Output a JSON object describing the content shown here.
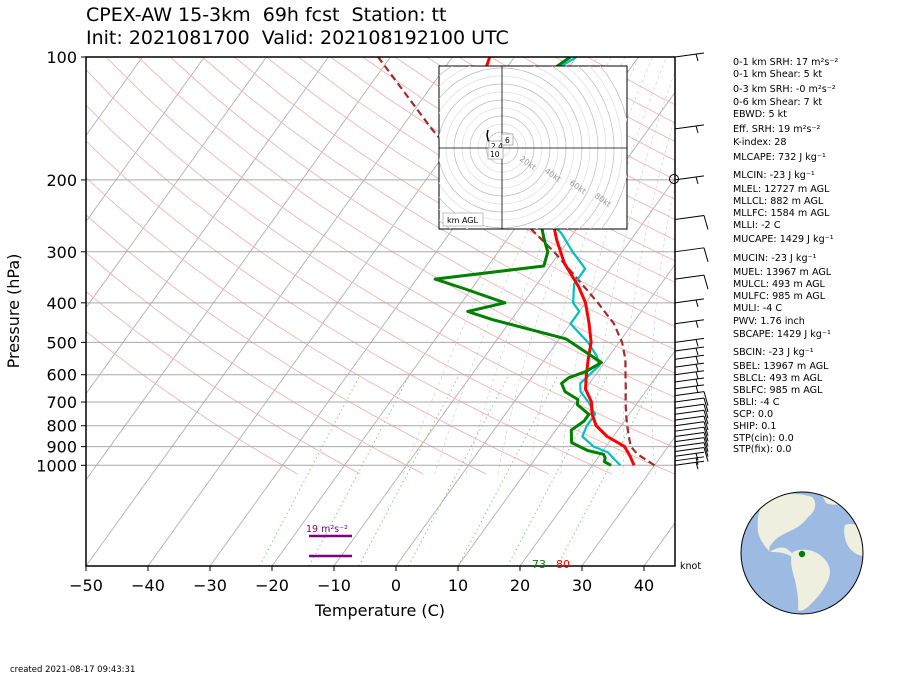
{
  "title": {
    "line1": "CPEX-AW 15-3km  69h fcst  Station: tt",
    "line2": "Init: 2021081700  Valid: 202108192100 UTC"
  },
  "created": "created 2021-08-17 09:43:31",
  "axes": {
    "xlabel": "Temperature (C)",
    "ylabel": "Pressure (hPa)",
    "xticks": [
      "−50",
      "−40",
      "−30",
      "−20",
      "−10",
      "0",
      "10",
      "20",
      "30",
      "40"
    ],
    "yticks": [
      "100",
      "200",
      "300",
      "400",
      "500",
      "600",
      "700",
      "800",
      "900",
      "1000"
    ]
  },
  "surface_labels": {
    "dewpoint": "73",
    "temperature": "80"
  },
  "srh_label": "19 m²s⁻²",
  "knot_label": "knot",
  "hodograph": {
    "rings": [
      "20kt",
      "40kt",
      "60kt",
      "80kt"
    ],
    "legend": "km AGL",
    "marks": [
      "2.4",
      "6",
      "10"
    ]
  },
  "indices": [
    "0-1 km SRH: 17 m²s⁻²",
    "0-1 km Shear: 5 kt",
    "0-3 km SRH: -0 m²s⁻²",
    "0-6 km Shear: 7 kt",
    "EBWD: 5 kt",
    "Eff. SRH: 19 m²s⁻²",
    "K-index: 28",
    "MLCAPE: 732 J kg⁻¹",
    "MLCIN: -23 J kg⁻¹",
    "MLEL: 12727 m AGL",
    "MLLCL: 882 m AGL",
    "MLLFC: 1584 m AGL",
    "MLLI: -2 C",
    "MUCAPE: 1429 J kg⁻¹",
    "MUCIN: -23 J kg⁻¹",
    "MUEL: 13967 m AGL",
    "MULCL: 493 m AGL",
    "MULFC: 985 m AGL",
    "MULI: -4 C",
    "PWV: 1.76 inch",
    "SBCAPE: 1429 J kg⁻¹",
    "SBCIN: -23 J kg⁻¹",
    "SBEL: 13967 m AGL",
    "SBLCL: 493 m AGL",
    "SBLFC: 985 m AGL",
    "SBLI: -4 C",
    "SCP: 0.0",
    "SHIP: 0.1",
    "STP(cin): 0.0",
    "STP(fix): 0.0"
  ],
  "colors": {
    "temperature": "#ff0000",
    "dewpoint": "#008000",
    "virtual_temp": "#00c0c0",
    "parcel": "#a52a2a",
    "srh_marker": "#800080",
    "ocean": "#9dbbe2",
    "land": "#efefdf",
    "station": "#008000"
  },
  "chart_data": {
    "type": "line",
    "title": "CPEX-AW 15-3km  69h fcst  Station: tt",
    "xlabel": "Temperature (C)",
    "ylabel": "Pressure (hPa)",
    "xlim": [
      -50,
      45
    ],
    "ylim": [
      1050,
      100
    ],
    "y_scale": "log",
    "grid": true,
    "series": [
      {
        "points": [
          [
            26.7,
            1000
          ],
          [
            25,
            950
          ],
          [
            23,
            900
          ],
          [
            19,
            850
          ],
          [
            16,
            800
          ],
          [
            14,
            750
          ],
          [
            12.5,
            700
          ],
          [
            10,
            650
          ],
          [
            8.5,
            600
          ],
          [
            7,
            550
          ],
          [
            5.5,
            500
          ],
          [
            3,
            450
          ],
          [
            0,
            400
          ],
          [
            -3,
            365
          ],
          [
            -8,
            320
          ],
          [
            -12,
            280
          ],
          [
            -15,
            250
          ],
          [
            -20,
            220
          ],
          [
            -26,
            190
          ],
          [
            -32,
            165
          ],
          [
            -38,
            140
          ],
          [
            -42,
            120
          ],
          [
            -44,
            100
          ]
        ]
      },
      {
        "points": [
          [
            23,
            1000
          ],
          [
            21.5,
            980
          ],
          [
            21.2,
            960
          ],
          [
            20.5,
            940
          ],
          [
            17.5,
            920
          ],
          [
            14,
            880
          ],
          [
            12.5,
            820
          ],
          [
            13.5,
            780
          ],
          [
            13.5,
            750
          ],
          [
            10.5,
            710
          ],
          [
            10,
            690
          ],
          [
            7,
            660
          ],
          [
            5.5,
            630
          ],
          [
            6,
            610
          ],
          [
            8,
            590
          ],
          [
            9.5,
            560
          ],
          [
            1,
            490
          ],
          [
            -13,
            440
          ],
          [
            -18,
            420
          ],
          [
            -13,
            400
          ],
          [
            -21,
            370
          ],
          [
            -27,
            350
          ],
          [
            -11,
            325
          ],
          [
            -12,
            300
          ],
          [
            -14,
            280
          ],
          [
            -17,
            250
          ],
          [
            -22,
            220
          ],
          [
            -28,
            190
          ],
          [
            -32,
            175
          ],
          [
            -36,
            155
          ],
          [
            -37,
            140
          ],
          [
            -35,
            125
          ],
          [
            -32,
            105
          ],
          [
            -31,
            100
          ]
        ]
      },
      {
        "points": [
          [
            24.5,
            1000
          ],
          [
            22.5,
            960
          ],
          [
            21,
            930
          ],
          [
            18,
            900
          ],
          [
            15,
            850
          ],
          [
            14.5,
            800
          ],
          [
            14.5,
            750
          ],
          [
            12,
            700
          ],
          [
            9.5,
            660
          ],
          [
            8.5,
            630
          ],
          [
            9,
            600
          ],
          [
            9.5,
            570
          ],
          [
            8,
            540
          ],
          [
            5,
            500
          ],
          [
            0,
            450
          ],
          [
            0,
            420
          ],
          [
            -2,
            400
          ],
          [
            -4,
            360
          ],
          [
            -4,
            330
          ],
          [
            -8,
            300
          ],
          [
            -12,
            270
          ],
          [
            -18,
            240
          ],
          [
            -24,
            210
          ],
          [
            -30,
            185
          ],
          [
            -35,
            160
          ],
          [
            -37,
            140
          ],
          [
            -35,
            120
          ],
          [
            -30,
            100
          ]
        ]
      },
      {
        "name": "parcel",
        "points": [
          [
            30,
            1000
          ],
          [
            26,
            940
          ],
          [
            24,
            900
          ],
          [
            22.5,
            850
          ],
          [
            21,
            800
          ],
          [
            19.5,
            750
          ],
          [
            18,
            700
          ],
          [
            16.5,
            650
          ],
          [
            14.8,
            600
          ],
          [
            13,
            550
          ],
          [
            10.5,
            500
          ],
          [
            7,
            450
          ],
          [
            2,
            400
          ],
          [
            -4,
            350
          ],
          [
            -11,
            300
          ],
          [
            -20,
            250
          ],
          [
            -32,
            200
          ],
          [
            -45,
            150
          ],
          [
            -62,
            100
          ]
        ]
      }
    ],
    "winds_kt": {
      "pressures": [
        1000,
        975,
        950,
        925,
        900,
        875,
        850,
        825,
        800,
        775,
        750,
        725,
        700,
        675,
        650,
        625,
        600,
        575,
        550,
        525,
        500,
        450,
        400,
        350,
        300,
        250,
        200,
        150,
        100
      ],
      "speed": [
        5,
        5,
        5,
        10,
        10,
        10,
        10,
        10,
        10,
        10,
        10,
        10,
        10,
        10,
        5,
        5,
        5,
        5,
        5,
        5,
        5,
        5,
        5,
        10,
        10,
        10,
        5,
        5,
        5
      ]
    },
    "surface_temperature_F": 80,
    "surface_dewpoint_F": 73,
    "effective_srh": "19 m²s⁻²"
  }
}
